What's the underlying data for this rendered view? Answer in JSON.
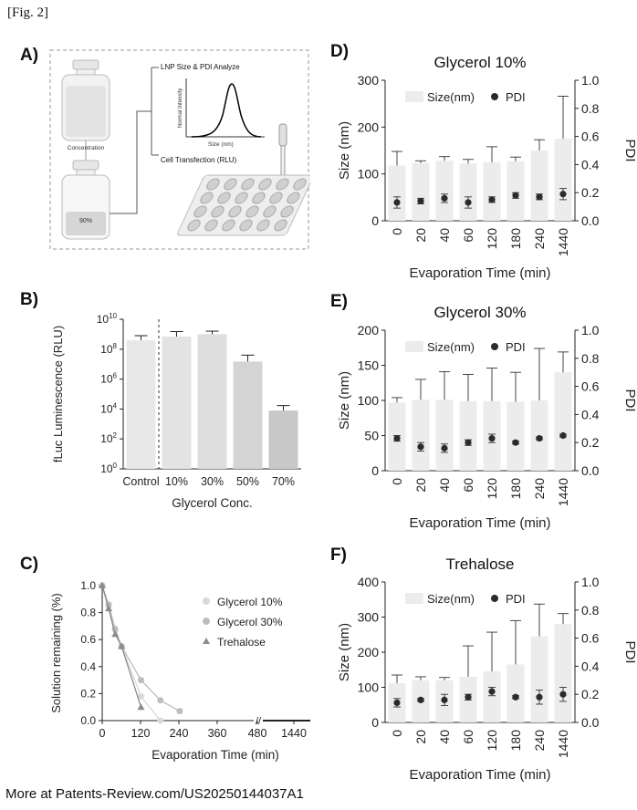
{
  "figure_label": "[Fig. 2]",
  "footer_text": "More at Patents-Review.com/US20250144037A1",
  "panel_letters": {
    "A": "A)",
    "B": "B)",
    "C": "C)",
    "D": "D)",
    "E": "E)",
    "F": "F)"
  },
  "panel_a": {
    "analyze_label": "LNP Size & PDI Analyze",
    "y_label": "Normal Intensity",
    "x_label": "Size (nm)",
    "transfection_label": "Cell Transfection (RLU)",
    "concentration_label": "Concentration",
    "percent_label": "90%"
  },
  "chart_data": [
    {
      "id": "B",
      "type": "bar",
      "title": "",
      "xlabel": "Glycerol Conc.",
      "ylabel": "fLuc Luminescence (RLU)",
      "yscale": "log",
      "ylim": [
        1,
        10000000000
      ],
      "ytick_labels": [
        "10^0",
        "10^2",
        "10^4",
        "10^6",
        "10^8",
        "10^10"
      ],
      "categories": [
        "Control",
        "10%",
        "30%",
        "50%",
        "70%"
      ],
      "values": [
        400000000,
        700000000,
        1000000000,
        15000000,
        8000
      ],
      "errors": [
        800000000,
        1500000000,
        1600000000,
        40000000,
        17000
      ],
      "divider_after": 0
    },
    {
      "id": "C",
      "type": "line",
      "title": "",
      "xlabel": "Evaporation Time (min)",
      "ylabel": "Solution remaining (%)",
      "xtick_labels": [
        "0",
        "120",
        "240",
        "360",
        "480",
        "1440"
      ],
      "yticks": [
        0.0,
        0.2,
        0.4,
        0.6,
        0.8,
        1.0
      ],
      "legend": [
        "Glycerol 10%",
        "Glycerol 30%",
        "Trehalose"
      ],
      "series": [
        {
          "name": "Glycerol 10%",
          "color": "#d9d9d9",
          "marker": "circle",
          "x": [
            0,
            20,
            40,
            60,
            120,
            180
          ],
          "y": [
            1.0,
            0.85,
            0.67,
            0.55,
            0.18,
            0.0
          ]
        },
        {
          "name": "Glycerol 30%",
          "color": "#bdbdbd",
          "marker": "circle",
          "x": [
            0,
            20,
            40,
            60,
            120,
            180,
            240
          ],
          "y": [
            1.0,
            0.86,
            0.68,
            0.55,
            0.3,
            0.15,
            0.07
          ]
        },
        {
          "name": "Trehalose",
          "color": "#8c8c8c",
          "marker": "triangle",
          "x": [
            0,
            20,
            40,
            60,
            120
          ],
          "y": [
            1.0,
            0.83,
            0.64,
            0.55,
            0.1
          ]
        }
      ]
    },
    {
      "id": "D",
      "type": "bar",
      "title": "Glycerol 10%",
      "xlabel": "Evaporation Time (min)",
      "ylabel": "Size (nm)",
      "y2label": "PDI",
      "legend": [
        "Size(nm)",
        "PDI"
      ],
      "ylim": [
        0,
        300
      ],
      "y2lim": [
        0,
        1.0
      ],
      "yticks": [
        0,
        100,
        200,
        300
      ],
      "categories": [
        "0",
        "20",
        "40",
        "60",
        "120",
        "180",
        "240",
        "1440"
      ],
      "size": [
        118,
        123,
        128,
        122,
        125,
        127,
        150,
        175
      ],
      "size_err": [
        148,
        128,
        137,
        131,
        158,
        136,
        173,
        266
      ],
      "pdi": [
        0.13,
        0.14,
        0.16,
        0.13,
        0.15,
        0.18,
        0.17,
        0.19
      ],
      "pdi_err": [
        0.04,
        0.02,
        0.03,
        0.04,
        0.02,
        0.02,
        0.02,
        0.04
      ]
    },
    {
      "id": "E",
      "type": "bar",
      "title": "Glycerol 30%",
      "xlabel": "Evaporation Time (min)",
      "ylabel": "Size (nm)",
      "y2label": "PDI",
      "legend": [
        "Size(nm)",
        "PDI"
      ],
      "ylim": [
        0,
        200
      ],
      "y2lim": [
        0,
        1.0
      ],
      "yticks": [
        0,
        50,
        100,
        150,
        200
      ],
      "categories": [
        "0",
        "20",
        "40",
        "60",
        "120",
        "180",
        "240",
        "1440"
      ],
      "size": [
        97,
        101,
        101,
        99,
        99,
        98,
        100,
        140
      ],
      "size_err": [
        104,
        130,
        141,
        137,
        146,
        140,
        174,
        169
      ],
      "pdi": [
        0.23,
        0.17,
        0.16,
        0.2,
        0.23,
        0.2,
        0.23,
        0.25
      ],
      "pdi_err": [
        0.02,
        0.03,
        0.03,
        0.02,
        0.03,
        0.01,
        0.01,
        0.01
      ]
    },
    {
      "id": "F",
      "type": "bar",
      "title": "Trehalose",
      "xlabel": "Evaporation Time (min)",
      "ylabel": "Size (nm)",
      "y2label": "PDI",
      "legend": [
        "Size(nm)",
        "PDI"
      ],
      "ylim": [
        0,
        400
      ],
      "y2lim": [
        0,
        1.0
      ],
      "yticks": [
        0,
        100,
        200,
        300,
        400
      ],
      "categories": [
        "0",
        "20",
        "40",
        "60",
        "120",
        "180",
        "240",
        "1440"
      ],
      "size": [
        112,
        120,
        120,
        130,
        145,
        165,
        245,
        280
      ],
      "size_err": [
        135,
        130,
        128,
        218,
        257,
        290,
        337,
        310
      ],
      "pdi": [
        0.14,
        0.16,
        0.16,
        0.18,
        0.22,
        0.18,
        0.18,
        0.2
      ],
      "pdi_err": [
        0.03,
        0.01,
        0.04,
        0.02,
        0.03,
        0.01,
        0.05,
        0.05
      ]
    }
  ]
}
